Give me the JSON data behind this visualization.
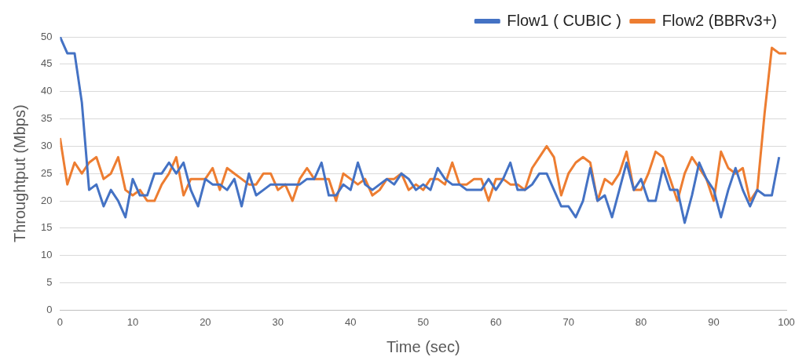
{
  "chart_data": {
    "type": "line",
    "xlabel": "Time (sec)",
    "ylabel": "Throughtput (Mbps)",
    "xlim": [
      0,
      100
    ],
    "xticks": [
      0,
      10,
      20,
      30,
      40,
      50,
      60,
      70,
      80,
      90,
      100
    ],
    "ylim": [
      0,
      50
    ],
    "yticks": [
      0,
      5,
      10,
      15,
      20,
      25,
      30,
      35,
      40,
      45,
      50
    ],
    "grid": "y",
    "legend": "top right",
    "marker": "none",
    "line_style": "solid",
    "series": [
      {
        "name": "Flow1 ( CUBIC )",
        "color": "#4472c4",
        "x": [
          0,
          1,
          2,
          3,
          4,
          5,
          6,
          7,
          8,
          9,
          10,
          11,
          12,
          13,
          14,
          15,
          16,
          17,
          18,
          19,
          20,
          21,
          22,
          23,
          24,
          25,
          26,
          27,
          28,
          29,
          30,
          31,
          32,
          33,
          34,
          35,
          36,
          37,
          38,
          39,
          40,
          41,
          42,
          43,
          44,
          45,
          46,
          47,
          48,
          49,
          50,
          51,
          52,
          53,
          54,
          55,
          56,
          57,
          58,
          59,
          60,
          61,
          62,
          63,
          64,
          65,
          66,
          67,
          68,
          69,
          70,
          71,
          72,
          73,
          74,
          75,
          76,
          77,
          78,
          79,
          80,
          81,
          82,
          83,
          84,
          85,
          86,
          87,
          88,
          89,
          90,
          91,
          92,
          93,
          94,
          95,
          96,
          97,
          98,
          99
        ],
        "values": [
          50,
          47,
          47,
          38,
          22,
          23,
          19,
          22,
          20,
          17,
          24,
          21,
          21,
          25,
          25,
          27,
          25,
          27,
          22,
          19,
          24,
          23,
          23,
          22,
          24,
          19,
          25,
          21,
          22,
          23,
          23,
          23,
          23,
          23,
          24,
          24,
          27,
          21,
          21,
          23,
          22,
          27,
          23,
          22,
          23,
          24,
          23,
          25,
          24,
          22,
          23,
          22,
          26,
          24,
          23,
          23,
          22,
          22,
          22,
          24,
          22,
          24,
          27,
          22,
          22,
          23,
          25,
          25,
          22,
          19,
          19,
          17,
          20,
          26,
          20,
          21,
          17,
          22,
          27,
          22,
          24,
          20,
          20,
          26,
          22,
          22,
          16,
          21,
          27,
          24,
          22,
          17,
          22,
          26,
          22,
          19,
          22,
          21,
          21,
          28
        ]
      },
      {
        "name": "Flow2 (BBRv3+)",
        "color": "#ed7d31",
        "x": [
          0,
          1,
          2,
          3,
          4,
          5,
          6,
          7,
          8,
          9,
          10,
          11,
          12,
          13,
          14,
          15,
          16,
          17,
          18,
          19,
          20,
          21,
          22,
          23,
          24,
          25,
          26,
          27,
          28,
          29,
          30,
          31,
          32,
          33,
          34,
          35,
          36,
          37,
          38,
          39,
          40,
          41,
          42,
          43,
          44,
          45,
          46,
          47,
          48,
          49,
          50,
          51,
          52,
          53,
          54,
          55,
          56,
          57,
          58,
          59,
          60,
          61,
          62,
          63,
          64,
          65,
          66,
          67,
          68,
          69,
          70,
          71,
          72,
          73,
          74,
          75,
          76,
          77,
          78,
          79,
          80,
          81,
          82,
          83,
          84,
          85,
          86,
          87,
          88,
          89,
          90,
          91,
          92,
          93,
          94,
          95,
          96,
          97,
          98,
          99,
          100
        ],
        "values": [
          31.5,
          23,
          27,
          25,
          27,
          28,
          24,
          25,
          28,
          22,
          21,
          22,
          20,
          20,
          23,
          25,
          28,
          21,
          24,
          24,
          24,
          26,
          22,
          26,
          25,
          24,
          23,
          23,
          25,
          25,
          22,
          23,
          20,
          24,
          26,
          24,
          24,
          24,
          20,
          25,
          24,
          23,
          24,
          21,
          22,
          24,
          24,
          25,
          22,
          23,
          22,
          24,
          24,
          23,
          27,
          23,
          23,
          24,
          24,
          20,
          24,
          24,
          23,
          23,
          22,
          26,
          28,
          30,
          28,
          21,
          25,
          27,
          28,
          27,
          20,
          24,
          23,
          25,
          29,
          22,
          22,
          25,
          29,
          28,
          24,
          20,
          25,
          28,
          26,
          24,
          20,
          29,
          26,
          25,
          26,
          20,
          22,
          36,
          48,
          47,
          47
        ]
      }
    ]
  }
}
